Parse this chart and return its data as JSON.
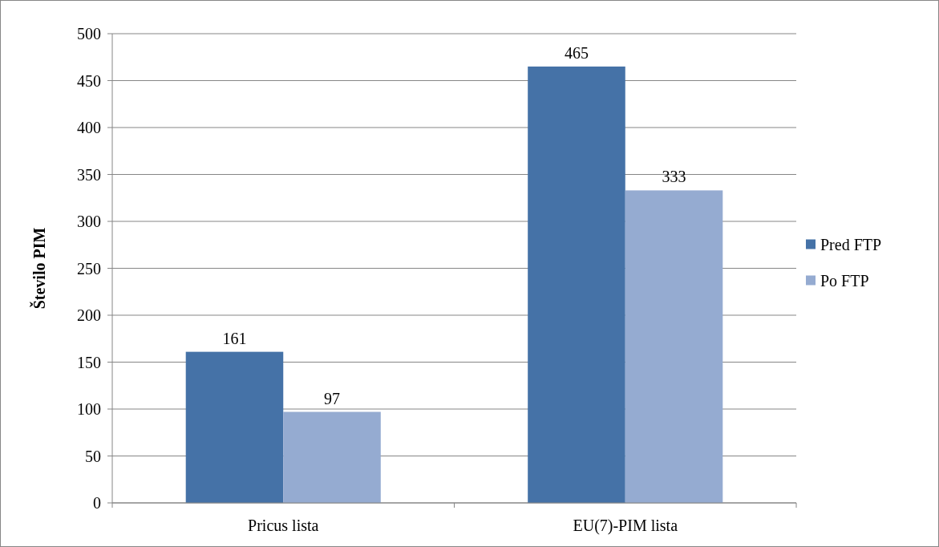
{
  "chart_data": {
    "type": "bar",
    "ylabel": "Število PIM",
    "categories": [
      "Pricus lista",
      "EU(7)-PIM lista"
    ],
    "series": [
      {
        "name": "Pred FTP",
        "color": "#4572a7",
        "values": [
          161,
          465
        ]
      },
      {
        "name": "Po FTP",
        "color": "#95abd1",
        "values": [
          97,
          333
        ]
      }
    ],
    "ylim": [
      0,
      500
    ],
    "yticks": [
      0,
      50,
      100,
      150,
      200,
      250,
      300,
      350,
      400,
      450,
      500
    ],
    "grid": "y",
    "legend": "right",
    "data_labels": true
  }
}
